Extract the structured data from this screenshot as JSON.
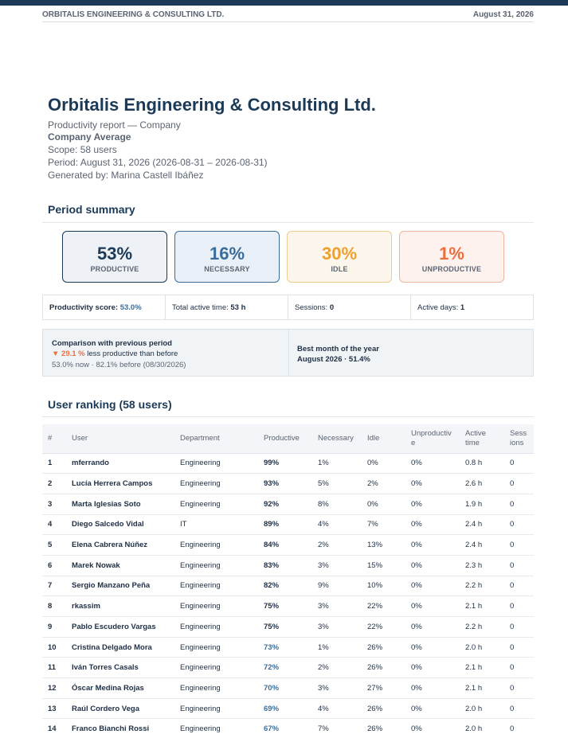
{
  "header": {
    "company": "ORBITALIS ENGINEERING & CONSULTING LTD.",
    "date": "August 31, 2026"
  },
  "title": "Orbitalis Engineering & Consulting Ltd.",
  "meta": {
    "report_type": "Productivity report — Company",
    "subject": "Company Average",
    "scope": "Scope: 58 users",
    "period": "Period: August 31, 2026 (2026-08-31 – 2026-08-31)",
    "generated_by": "Generated by: Marina Castell Ibáñez"
  },
  "summary": {
    "title": "Period summary",
    "cards": [
      {
        "pct": "53%",
        "label": "PRODUCTIVE"
      },
      {
        "pct": "16%",
        "label": "NECESSARY"
      },
      {
        "pct": "30%",
        "label": "IDLE"
      },
      {
        "pct": "1%",
        "label": "UNPRODUCTIVE"
      }
    ],
    "stats": {
      "score_label": "Productivity score:",
      "score_value": "53.0%",
      "active_label": "Total active time:",
      "active_value": "53 h",
      "sessions_label": "Sessions:",
      "sessions_value": "0",
      "days_label": "Active days:",
      "days_value": "1"
    },
    "comparison": {
      "title": "Comparison with previous period",
      "delta": "▼ 29.1 %",
      "delta_text": "less productive than before",
      "detail": "53.0% now · 82.1% before (08/30/2026)",
      "best_title": "Best month of the year",
      "best_value": "August 2026 · 51.4%"
    }
  },
  "ranking": {
    "title": "User ranking (58 users)",
    "columns": {
      "num": "#",
      "user": "User",
      "dept": "Department",
      "prod": "Productive",
      "nec": "Necessary",
      "idle": "Idle",
      "unp": "Unproductive",
      "act": "Active time",
      "ses": "Sessions"
    },
    "rows": [
      {
        "num": "1",
        "user": "mferrando",
        "dept": "Engineering",
        "prod": "99%",
        "nec": "1%",
        "idle": "0%",
        "unp": "0%",
        "act": "0.8 h",
        "ses": "0"
      },
      {
        "num": "2",
        "user": "Lucía Herrera Campos",
        "dept": "Engineering",
        "prod": "93%",
        "nec": "5%",
        "idle": "2%",
        "unp": "0%",
        "act": "2.6 h",
        "ses": "0"
      },
      {
        "num": "3",
        "user": "Marta Iglesias Soto",
        "dept": "Engineering",
        "prod": "92%",
        "nec": "8%",
        "idle": "0%",
        "unp": "0%",
        "act": "1.9 h",
        "ses": "0"
      },
      {
        "num": "4",
        "user": "Diego Salcedo Vidal",
        "dept": "IT",
        "prod": "89%",
        "nec": "4%",
        "idle": "7%",
        "unp": "0%",
        "act": "2.4 h",
        "ses": "0"
      },
      {
        "num": "5",
        "user": "Elena Cabrera Núñez",
        "dept": "Engineering",
        "prod": "84%",
        "nec": "2%",
        "idle": "13%",
        "unp": "0%",
        "act": "2.4 h",
        "ses": "0"
      },
      {
        "num": "6",
        "user": "Marek Nowak",
        "dept": "Engineering",
        "prod": "83%",
        "nec": "3%",
        "idle": "15%",
        "unp": "0%",
        "act": "2.3 h",
        "ses": "0"
      },
      {
        "num": "7",
        "user": "Sergio Manzano Peña",
        "dept": "Engineering",
        "prod": "82%",
        "nec": "9%",
        "idle": "10%",
        "unp": "0%",
        "act": "2.2 h",
        "ses": "0"
      },
      {
        "num": "8",
        "user": "rkassim",
        "dept": "Engineering",
        "prod": "75%",
        "nec": "3%",
        "idle": "22%",
        "unp": "0%",
        "act": "2.1 h",
        "ses": "0"
      },
      {
        "num": "9",
        "user": "Pablo Escudero Vargas",
        "dept": "Engineering",
        "prod": "75%",
        "nec": "3%",
        "idle": "22%",
        "unp": "0%",
        "act": "2.2 h",
        "ses": "0"
      },
      {
        "num": "10",
        "user": "Cristina Delgado Mora",
        "dept": "Engineering",
        "prod": "73%",
        "nec": "1%",
        "idle": "26%",
        "unp": "0%",
        "act": "2.0 h",
        "ses": "0"
      },
      {
        "num": "11",
        "user": "Iván Torres Casals",
        "dept": "Engineering",
        "prod": "72%",
        "nec": "2%",
        "idle": "26%",
        "unp": "0%",
        "act": "2.1 h",
        "ses": "0"
      },
      {
        "num": "12",
        "user": "Óscar Medina Rojas",
        "dept": "Engineering",
        "prod": "70%",
        "nec": "3%",
        "idle": "27%",
        "unp": "0%",
        "act": "2.1 h",
        "ses": "0"
      },
      {
        "num": "13",
        "user": "Raúl Cordero Vega",
        "dept": "Engineering",
        "prod": "69%",
        "nec": "4%",
        "idle": "26%",
        "unp": "0%",
        "act": "2.0 h",
        "ses": "0"
      },
      {
        "num": "14",
        "user": "Franco Bianchi Rossi",
        "dept": "Engineering",
        "prod": "67%",
        "nec": "7%",
        "idle": "26%",
        "unp": "0%",
        "act": "2.0 h",
        "ses": "0"
      }
    ]
  }
}
